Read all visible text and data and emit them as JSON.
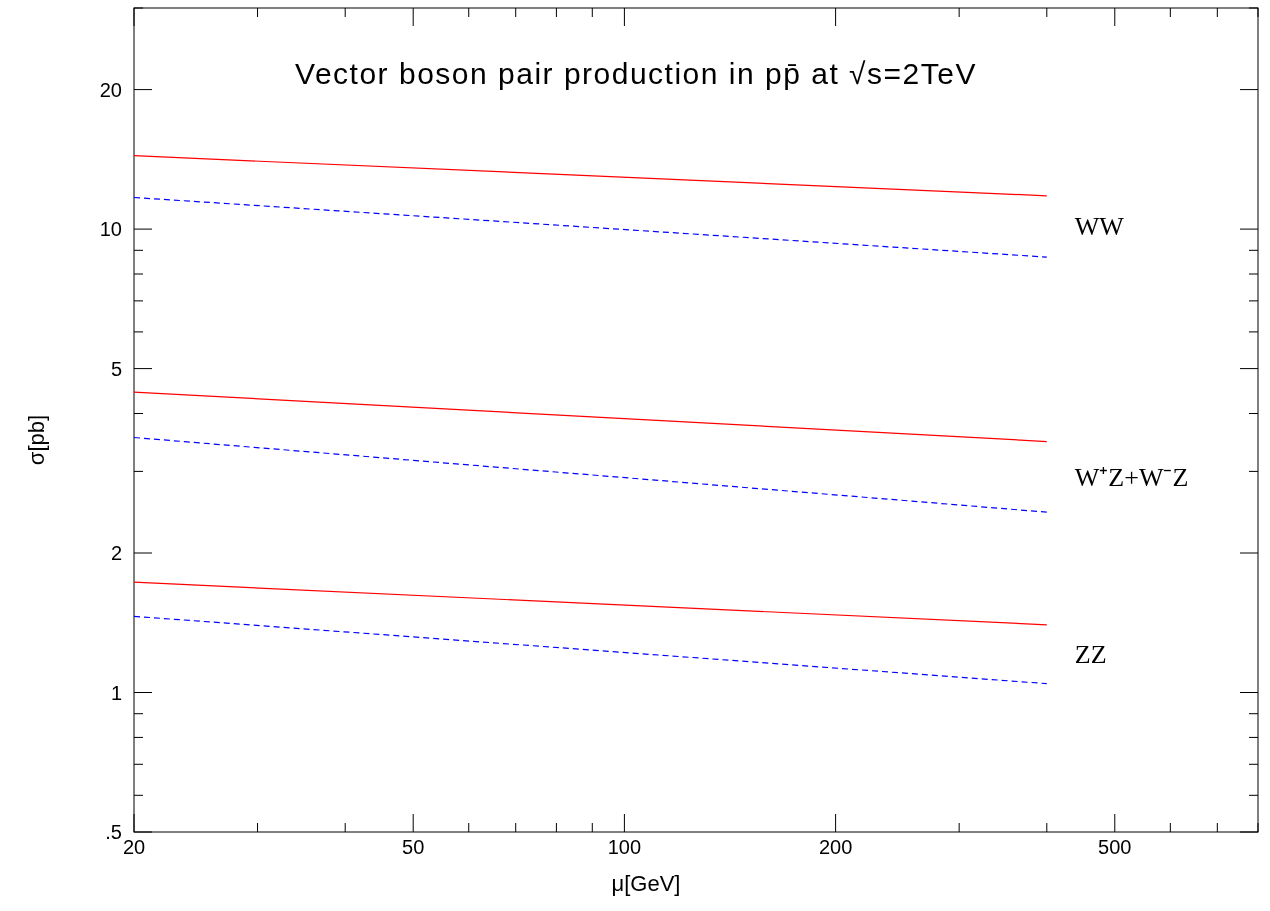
{
  "chart_data": {
    "type": "line",
    "title": "Vector boson pair production in pp̄ at √s=2TeV",
    "xlabel": "μ[GeV]",
    "ylabel": "σ[pb]",
    "log": "xy",
    "grid": false,
    "xlim": [
      20,
      800
    ],
    "ylim": [
      0.5,
      30
    ],
    "xticks": [
      20,
      {
        "value": 30,
        "label": null
      },
      {
        "value": 40,
        "label": null
      },
      50,
      {
        "value": 60,
        "label": null
      },
      {
        "value": 70,
        "label": null
      },
      {
        "value": 80,
        "label": null
      },
      {
        "value": 90,
        "label": null
      },
      100,
      200,
      {
        "value": 300,
        "label": null
      },
      {
        "value": 400,
        "label": null
      },
      500,
      {
        "value": 600,
        "label": null
      },
      {
        "value": 700,
        "label": null
      },
      {
        "value": 800,
        "label": null
      }
    ],
    "yticks": [
      {
        "value": 0.5,
        "label": ".5"
      },
      {
        "value": 0.6,
        "label": null
      },
      {
        "value": 0.7,
        "label": null
      },
      {
        "value": 0.8,
        "label": null
      },
      {
        "value": 0.9,
        "label": null
      },
      1,
      2,
      {
        "value": 3,
        "label": null
      },
      {
        "value": 4,
        "label": null
      },
      5,
      {
        "value": 6,
        "label": null
      },
      {
        "value": 7,
        "label": null
      },
      {
        "value": 8,
        "label": null
      },
      {
        "value": 9,
        "label": null
      },
      10,
      20,
      {
        "value": 30,
        "label": null
      }
    ],
    "x": [
      20,
      400
    ],
    "series": [
      {
        "color": "#ff0000",
        "line_style": "solid",
        "values": [
          14.4,
          11.8
        ]
      },
      {
        "color": "#0000ff",
        "line_style": "dashed",
        "values": [
          11.7,
          8.7
        ]
      },
      {
        "color": "#ff0000",
        "line_style": "solid",
        "values": [
          4.45,
          3.48
        ]
      },
      {
        "color": "#0000ff",
        "line_style": "dashed",
        "values": [
          3.55,
          2.45
        ]
      },
      {
        "color": "#ff0000",
        "line_style": "solid",
        "values": [
          1.73,
          1.4
        ]
      },
      {
        "color": "#0000ff",
        "line_style": "dashed",
        "values": [
          1.46,
          1.045
        ]
      }
    ],
    "annotations": [
      "WW",
      "W⁺Z+W⁻Z",
      "ZZ"
    ]
  }
}
